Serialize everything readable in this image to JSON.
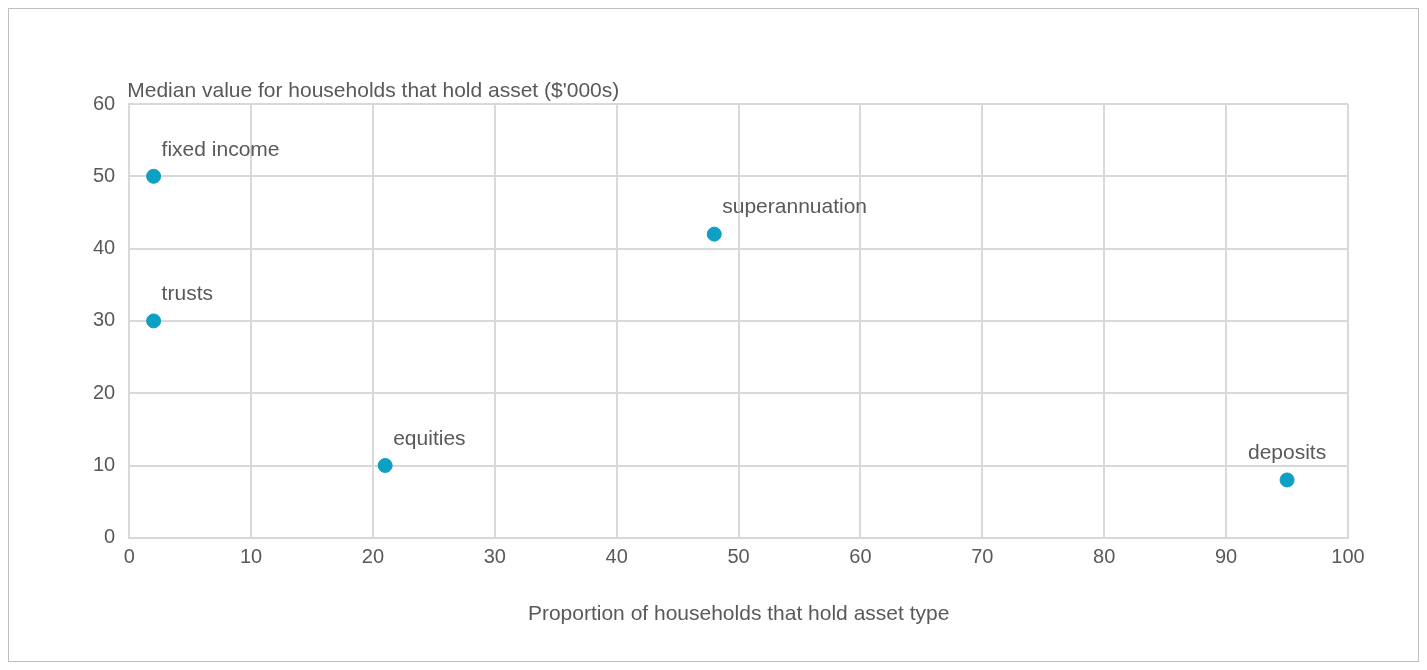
{
  "chart_data": {
    "type": "scatter",
    "ylabel": "Median value for households that hold asset ($'000s)",
    "xlabel": "Proportion of households that hold asset type",
    "x": [
      2,
      2,
      21,
      48,
      95
    ],
    "series": [
      {
        "color": "#0e9fc4",
        "values": [
          50,
          30,
          10,
          42,
          8
        ]
      }
    ],
    "annotations": [
      {
        "text": "fixed income",
        "x": 2,
        "y": 50
      },
      {
        "text": "trusts",
        "x": 2,
        "y": 30
      },
      {
        "text": "equities",
        "x": 21,
        "y": 10
      },
      {
        "text": "superannuation",
        "x": 48,
        "y": 42
      },
      {
        "text": "deposits",
        "x": 95,
        "y": 8
      }
    ],
    "xlim": [
      0,
      100
    ],
    "xticks": [
      0,
      10,
      20,
      30,
      40,
      50,
      60,
      70,
      80,
      90,
      100
    ],
    "ylim": [
      0,
      60
    ],
    "yticks": [
      0,
      10,
      20,
      30,
      40,
      50,
      60
    ],
    "grid": true,
    "marker": "circle",
    "legend": false
  }
}
